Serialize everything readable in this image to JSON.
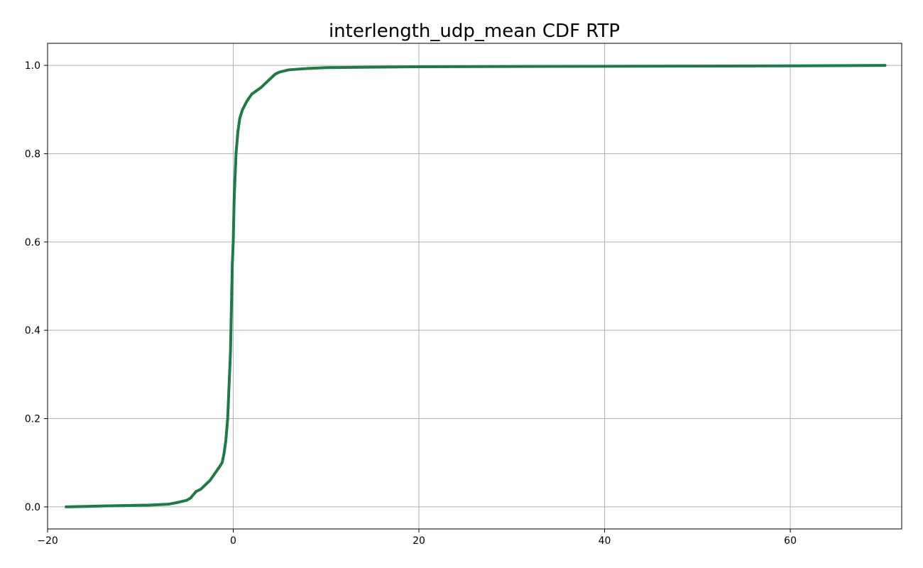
{
  "chart_data": {
    "type": "line",
    "title": "interlength_udp_mean CDF RTP",
    "xlabel": "",
    "ylabel": "",
    "xlim": [
      -20,
      72
    ],
    "ylim": [
      -0.05,
      1.05
    ],
    "xticks": [
      -20,
      0,
      20,
      40,
      60
    ],
    "yticks": [
      0.0,
      0.2,
      0.4,
      0.6,
      0.8,
      1.0
    ],
    "xtick_labels": [
      "−20",
      "0",
      "20",
      "40",
      "60"
    ],
    "ytick_labels": [
      "0.0",
      "0.2",
      "0.4",
      "0.6",
      "0.8",
      "1.0"
    ],
    "grid": true,
    "line_color": "#1f7a45",
    "series": [
      {
        "x": [
          -18,
          -14,
          -9,
          -7,
          -6,
          -5,
          -4.6,
          -4.2,
          -4,
          -3.5,
          -3,
          -2.5,
          -2,
          -1.5,
          -1.2,
          -1,
          -0.8,
          -0.6,
          -0.5,
          -0.4,
          -0.3,
          -0.2,
          -0.1,
          0,
          0.05,
          0.1,
          0.2,
          0.3,
          0.5,
          0.7,
          1,
          1.5,
          2,
          3,
          3.5,
          4,
          4.5,
          5,
          6,
          8,
          10,
          20,
          40,
          60,
          70.2
        ],
        "y": [
          0,
          0.002,
          0.004,
          0.006,
          0.01,
          0.015,
          0.02,
          0.03,
          0.035,
          0.04,
          0.05,
          0.06,
          0.075,
          0.09,
          0.1,
          0.12,
          0.15,
          0.2,
          0.25,
          0.3,
          0.35,
          0.45,
          0.55,
          0.6,
          0.65,
          0.7,
          0.75,
          0.8,
          0.85,
          0.88,
          0.9,
          0.92,
          0.935,
          0.95,
          0.96,
          0.97,
          0.98,
          0.985,
          0.99,
          0.993,
          0.995,
          0.997,
          0.998,
          0.999,
          1.0
        ]
      }
    ]
  }
}
